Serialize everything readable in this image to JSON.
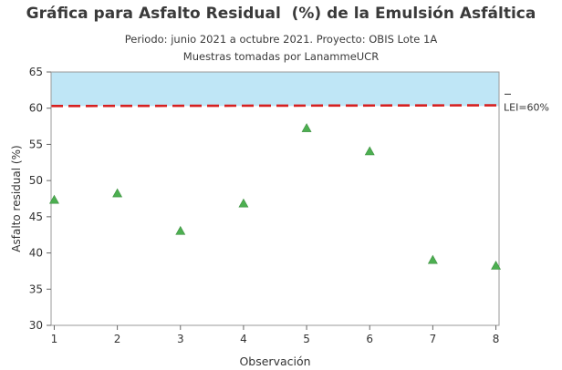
{
  "chart_data": {
    "type": "scatter",
    "title": "Gráfica para Asfalto Residual  (%) de la Emulsión Asfáltica",
    "subtitle": [
      "Periodo: junio 2021 a octubre 2021. Proyecto: OBIS Lote 1A",
      "Muestras tomadas por LanammeUCR"
    ],
    "xlabel": "Observación",
    "ylabel": "Asfalto residual (%)",
    "x": [
      1,
      2,
      3,
      4,
      5,
      6,
      7,
      8
    ],
    "y": [
      47.3,
      48.2,
      43.0,
      46.8,
      57.2,
      54.0,
      39.0,
      38.2
    ],
    "xlim": [
      0.95,
      8.05
    ],
    "ylim": [
      30,
      65
    ],
    "xticks": [
      "1",
      "2",
      "3",
      "4",
      "5",
      "6",
      "7",
      "8"
    ],
    "yticks": [
      "30",
      "35",
      "40",
      "45",
      "50",
      "55",
      "60",
      "65"
    ],
    "marker": "triangle",
    "marker_color": "#4caf50",
    "reference_line": {
      "y": 60.3,
      "label": "LEI=60%",
      "color": "#d62020",
      "style": "dashed"
    },
    "shaded_band": {
      "y0": 60.3,
      "y1": 65,
      "color": "#bfe6f6"
    },
    "grid": false,
    "legend": "none"
  }
}
